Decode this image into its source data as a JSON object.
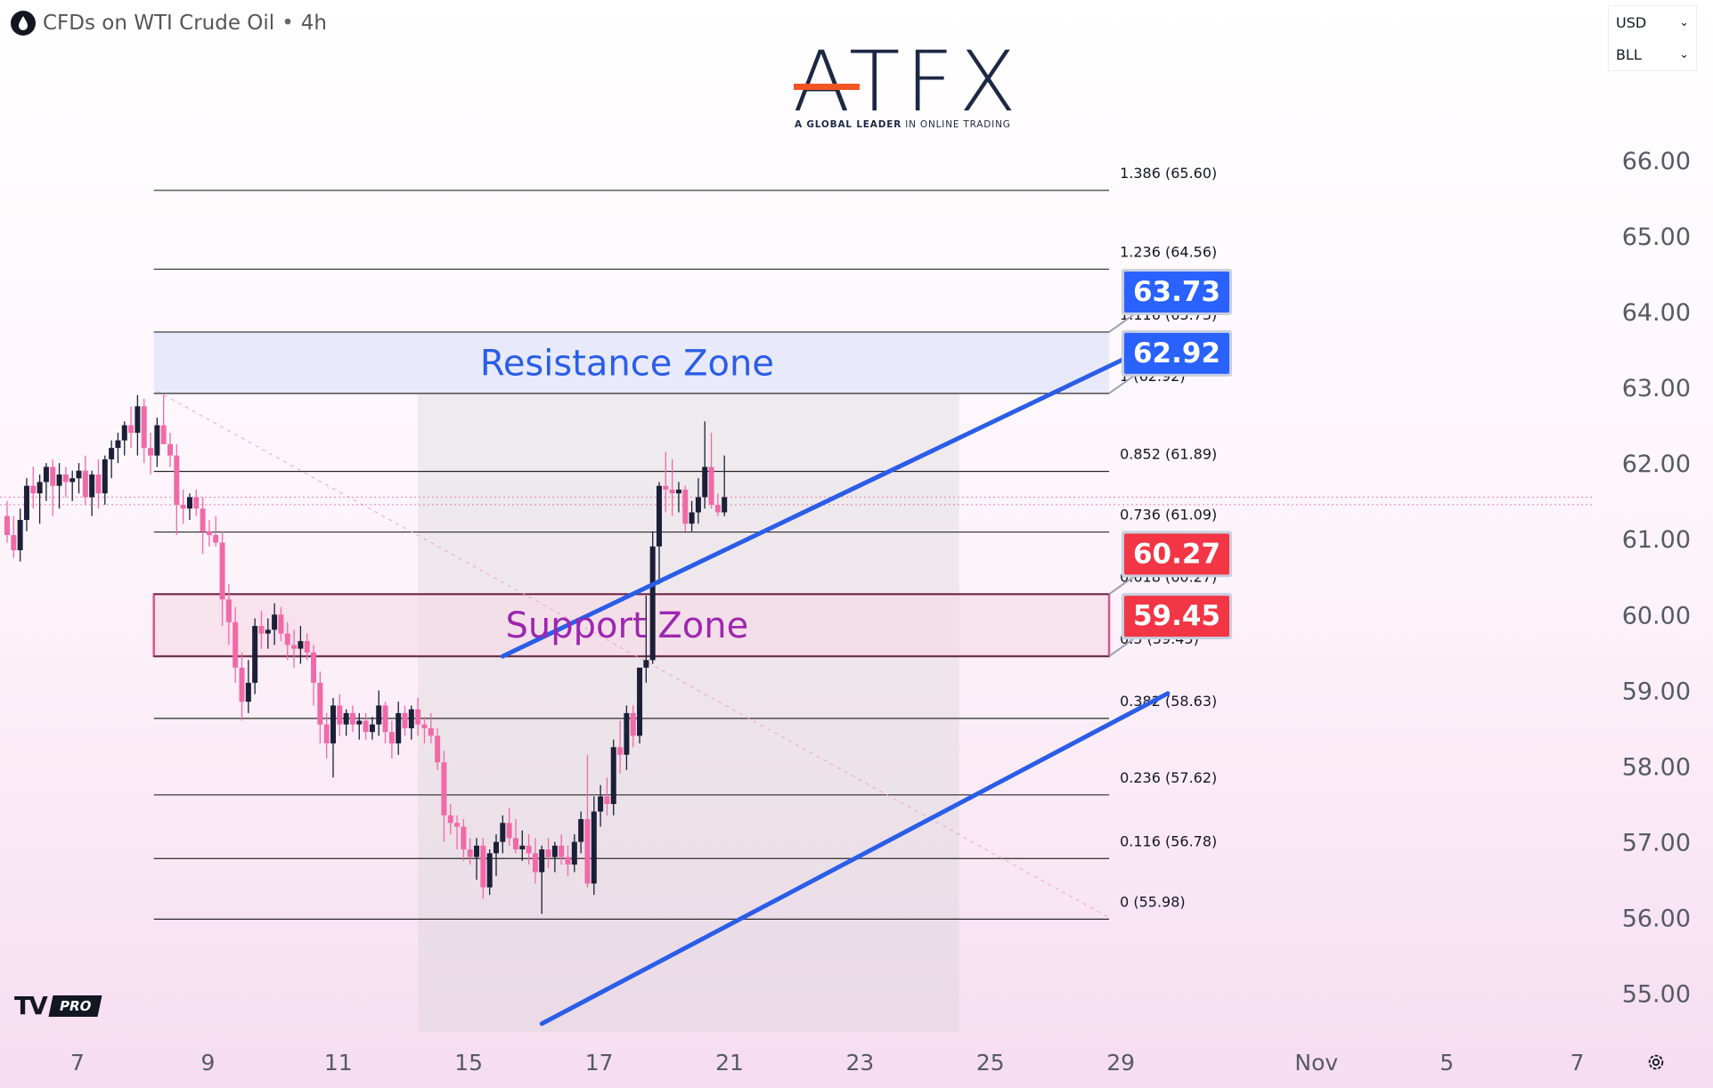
{
  "header": {
    "symbol_icon": "oil-drop-icon",
    "title": "CFDs on WTI Crude Oil",
    "separator": "•",
    "interval": "4h"
  },
  "currency_panel": {
    "currency": "USD",
    "unit": "BLL"
  },
  "logo": {
    "wordmark": "ATFX",
    "tagline_bold": "A GLOBAL LEADER",
    "tagline_rest": "IN ONLINE TRADING"
  },
  "footer": {
    "tv_mark": "TV",
    "badge": "PRO",
    "settings_icon": "settings-icon"
  },
  "colors": {
    "bull": "#1b2038",
    "bear": "#f06aa8",
    "channel": "#2a5de8",
    "resistance_fill": "#e6e8fb",
    "support_border": "#c2185b",
    "support_text": "#9c27b0",
    "resistance_text": "#2a5de8",
    "label_blue": "#2962ff",
    "label_red": "#f23645"
  },
  "chart_data": {
    "type": "candlestick",
    "title": "",
    "ylim": [
      54.75,
      66.55
    ],
    "y_ticks": [
      {
        "value": 66.0,
        "label": "66.00"
      },
      {
        "value": 65.0,
        "label": "65.00"
      },
      {
        "value": 64.0,
        "label": "64.00"
      },
      {
        "value": 63.0,
        "label": "63.00"
      },
      {
        "value": 62.0,
        "label": "62.00"
      },
      {
        "value": 61.0,
        "label": "61.00"
      },
      {
        "value": 60.0,
        "label": "60.00"
      },
      {
        "value": 59.0,
        "label": "59.00"
      },
      {
        "value": 58.0,
        "label": "58.00"
      },
      {
        "value": 57.0,
        "label": "57.00"
      },
      {
        "value": 56.0,
        "label": "56.00"
      },
      {
        "value": 55.0,
        "label": "55.00"
      }
    ],
    "x_ticks": [
      {
        "bar": 0,
        "label": "7"
      },
      {
        "bar": 20,
        "label": "9"
      },
      {
        "bar": 40,
        "label": "11"
      },
      {
        "bar": 60,
        "label": "15"
      },
      {
        "bar": 80,
        "label": "17"
      },
      {
        "bar": 100,
        "label": "21"
      },
      {
        "bar": 120,
        "label": "23"
      },
      {
        "bar": 140,
        "label": "25"
      },
      {
        "bar": 160,
        "label": "29"
      },
      {
        "bar": 190,
        "label": "Nov"
      },
      {
        "bar": 210,
        "label": "5"
      },
      {
        "bar": 230,
        "label": "7"
      }
    ],
    "candles": [
      [
        61.3,
        61.5,
        60.95,
        61.05
      ],
      [
        61.05,
        61.3,
        60.75,
        60.85
      ],
      [
        60.85,
        61.4,
        60.7,
        61.25
      ],
      [
        61.25,
        61.8,
        61.1,
        61.7
      ],
      [
        61.7,
        61.95,
        61.4,
        61.6
      ],
      [
        61.6,
        61.85,
        61.2,
        61.75
      ],
      [
        61.75,
        62.0,
        61.5,
        61.95
      ],
      [
        61.95,
        62.05,
        61.3,
        61.7
      ],
      [
        61.7,
        62.0,
        61.4,
        61.85
      ],
      [
        61.85,
        61.95,
        61.55,
        61.75
      ],
      [
        61.75,
        61.9,
        61.5,
        61.8
      ],
      [
        61.8,
        62.0,
        61.6,
        61.9
      ],
      [
        61.9,
        62.1,
        61.45,
        61.55
      ],
      [
        61.55,
        61.9,
        61.3,
        61.85
      ],
      [
        61.85,
        62.05,
        61.4,
        61.6
      ],
      [
        61.6,
        62.1,
        61.45,
        62.05
      ],
      [
        62.05,
        62.3,
        61.8,
        62.2
      ],
      [
        62.2,
        62.4,
        62.0,
        62.3
      ],
      [
        62.3,
        62.55,
        62.1,
        62.5
      ],
      [
        62.5,
        62.75,
        62.2,
        62.4
      ],
      [
        62.4,
        62.9,
        62.1,
        62.75
      ],
      [
        62.75,
        62.85,
        62.0,
        62.2
      ],
      [
        62.2,
        62.4,
        61.85,
        62.1
      ],
      [
        62.1,
        62.6,
        61.95,
        62.5
      ],
      [
        62.5,
        62.9,
        62.3,
        62.25
      ],
      [
        62.25,
        62.4,
        61.95,
        62.1
      ],
      [
        62.1,
        62.25,
        61.05,
        61.45
      ],
      [
        61.45,
        61.65,
        61.2,
        61.4
      ],
      [
        61.4,
        61.6,
        61.25,
        61.55
      ],
      [
        61.55,
        61.65,
        61.3,
        61.4
      ],
      [
        61.4,
        61.55,
        60.8,
        61.1
      ],
      [
        61.1,
        61.25,
        60.9,
        61.05
      ],
      [
        61.05,
        61.3,
        60.9,
        60.95
      ],
      [
        60.95,
        61.1,
        59.85,
        60.2
      ],
      [
        60.2,
        60.4,
        59.6,
        59.9
      ],
      [
        59.9,
        60.1,
        59.1,
        59.3
      ],
      [
        59.3,
        59.5,
        58.6,
        58.85
      ],
      [
        58.85,
        59.4,
        58.7,
        59.1
      ],
      [
        59.1,
        59.95,
        58.95,
        59.85
      ],
      [
        59.85,
        60.05,
        59.55,
        59.75
      ],
      [
        59.75,
        59.95,
        59.55,
        59.8
      ],
      [
        59.8,
        60.15,
        59.6,
        60.0
      ],
      [
        60.0,
        60.1,
        59.65,
        59.75
      ],
      [
        59.75,
        59.9,
        59.4,
        59.6
      ],
      [
        59.6,
        59.8,
        59.3,
        59.55
      ],
      [
        59.55,
        59.85,
        59.35,
        59.65
      ],
      [
        59.65,
        59.75,
        59.4,
        59.5
      ],
      [
        59.5,
        59.6,
        58.8,
        59.1
      ],
      [
        59.1,
        59.25,
        58.3,
        58.55
      ],
      [
        58.55,
        58.7,
        58.1,
        58.3
      ],
      [
        58.3,
        58.9,
        57.85,
        58.8
      ],
      [
        58.8,
        58.95,
        58.4,
        58.55
      ],
      [
        58.55,
        58.75,
        58.4,
        58.7
      ],
      [
        58.7,
        58.8,
        58.45,
        58.55
      ],
      [
        58.55,
        58.7,
        58.35,
        58.6
      ],
      [
        58.6,
        58.7,
        58.35,
        58.45
      ],
      [
        58.45,
        58.65,
        58.35,
        58.55
      ],
      [
        58.55,
        59.0,
        58.4,
        58.8
      ],
      [
        58.8,
        58.85,
        58.3,
        58.45
      ],
      [
        58.45,
        58.6,
        58.1,
        58.3
      ],
      [
        58.3,
        58.85,
        58.15,
        58.7
      ],
      [
        58.7,
        58.8,
        58.4,
        58.5
      ],
      [
        58.5,
        58.8,
        58.35,
        58.75
      ],
      [
        58.75,
        58.9,
        58.4,
        58.55
      ],
      [
        58.55,
        58.65,
        58.3,
        58.5
      ],
      [
        58.5,
        58.7,
        58.3,
        58.4
      ],
      [
        58.4,
        58.5,
        57.95,
        58.05
      ],
      [
        58.05,
        58.2,
        57.0,
        57.35
      ],
      [
        57.35,
        57.5,
        57.1,
        57.25
      ],
      [
        57.25,
        57.35,
        56.9,
        57.2
      ],
      [
        57.2,
        57.3,
        56.75,
        56.9
      ],
      [
        56.9,
        57.05,
        56.7,
        56.8
      ],
      [
        56.8,
        57.05,
        56.5,
        56.95
      ],
      [
        56.95,
        57.05,
        56.25,
        56.4
      ],
      [
        56.4,
        56.9,
        56.3,
        56.85
      ],
      [
        56.85,
        57.1,
        56.55,
        57.0
      ],
      [
        57.0,
        57.35,
        56.85,
        57.25
      ],
      [
        57.25,
        57.45,
        56.95,
        57.05
      ],
      [
        57.05,
        57.3,
        56.85,
        56.9
      ],
      [
        56.9,
        57.15,
        56.75,
        56.95
      ],
      [
        56.95,
        57.1,
        56.7,
        56.85
      ],
      [
        56.85,
        57.05,
        56.45,
        56.6
      ],
      [
        56.6,
        56.95,
        56.05,
        56.9
      ],
      [
        56.9,
        57.05,
        56.65,
        56.8
      ],
      [
        56.8,
        57.0,
        56.6,
        56.95
      ],
      [
        56.95,
        57.1,
        56.7,
        56.8
      ],
      [
        56.8,
        56.95,
        56.55,
        56.7
      ],
      [
        56.7,
        57.1,
        56.6,
        57.0
      ],
      [
        57.0,
        57.4,
        56.85,
        57.3
      ],
      [
        57.3,
        58.15,
        56.4,
        56.45
      ],
      [
        56.45,
        57.6,
        56.3,
        57.4
      ],
      [
        57.4,
        57.75,
        57.2,
        57.6
      ],
      [
        57.6,
        57.85,
        57.35,
        57.5
      ],
      [
        57.5,
        58.35,
        57.35,
        58.25
      ],
      [
        58.25,
        58.6,
        57.9,
        58.15
      ],
      [
        58.15,
        58.8,
        57.95,
        58.7
      ],
      [
        58.7,
        58.8,
        58.25,
        58.4
      ],
      [
        58.4,
        59.3,
        58.3,
        59.3
      ],
      [
        59.3,
        60.25,
        59.1,
        59.4
      ],
      [
        59.4,
        61.1,
        59.35,
        60.9
      ],
      [
        60.9,
        61.75,
        60.4,
        61.7
      ],
      [
        61.7,
        62.15,
        61.35,
        61.65
      ],
      [
        61.65,
        62.05,
        61.3,
        61.6
      ],
      [
        61.6,
        61.75,
        61.35,
        61.65
      ],
      [
        61.65,
        61.7,
        61.1,
        61.2
      ],
      [
        61.2,
        61.5,
        61.1,
        61.35
      ],
      [
        61.35,
        61.8,
        61.2,
        61.55
      ],
      [
        61.55,
        62.55,
        61.4,
        61.95
      ],
      [
        61.95,
        62.4,
        61.4,
        61.45
      ],
      [
        61.45,
        61.6,
        61.3,
        61.35
      ],
      [
        61.35,
        62.1,
        61.3,
        61.55
      ]
    ],
    "fib_levels": [
      {
        "ratio": "1.386",
        "value": 65.6,
        "label": "1.386 (65.60)"
      },
      {
        "ratio": "1.236",
        "value": 64.56,
        "label": "1.236 (64.56)"
      },
      {
        "ratio": "1.116",
        "value": 63.73,
        "label": "1.116 (63.73)"
      },
      {
        "ratio": "1",
        "value": 62.92,
        "label": "1 (62.92)"
      },
      {
        "ratio": "0.852",
        "value": 61.89,
        "label": "0.852 (61.89)"
      },
      {
        "ratio": "0.736",
        "value": 61.09,
        "label": "0.736 (61.09)"
      },
      {
        "ratio": "0.618",
        "value": 60.27,
        "label": "0.618 (60.27)"
      },
      {
        "ratio": "0.5",
        "value": 59.45,
        "label": "0.5 (59.45)"
      },
      {
        "ratio": "0.382",
        "value": 58.63,
        "label": "0.382 (58.63)"
      },
      {
        "ratio": "0.236",
        "value": 57.62,
        "label": "0.236 (57.62)"
      },
      {
        "ratio": "0.116",
        "value": 56.78,
        "label": "0.116 (56.78)"
      },
      {
        "ratio": "0",
        "value": 55.98,
        "label": "0 (55.98)"
      }
    ],
    "zones": [
      {
        "name": "Resistance Zone",
        "low": 62.92,
        "high": 63.73
      },
      {
        "name": "Support Zone",
        "low": 59.45,
        "high": 60.27
      }
    ],
    "channel": {
      "upper": [
        [
          76,
          59.45
        ],
        [
          178,
          63.65
        ]
      ],
      "lower": [
        [
          82,
          54.6
        ],
        [
          178,
          58.96
        ]
      ]
    },
    "price_labels": [
      {
        "text": "63.73",
        "value": 63.73,
        "color": "blue"
      },
      {
        "text": "62.92",
        "value": 62.92,
        "color": "blue"
      },
      {
        "text": "60.27",
        "value": 60.27,
        "color": "red"
      },
      {
        "text": "59.45",
        "value": 59.45,
        "color": "red"
      }
    ],
    "current_price": 61.55,
    "prior_close": 61.45
  }
}
